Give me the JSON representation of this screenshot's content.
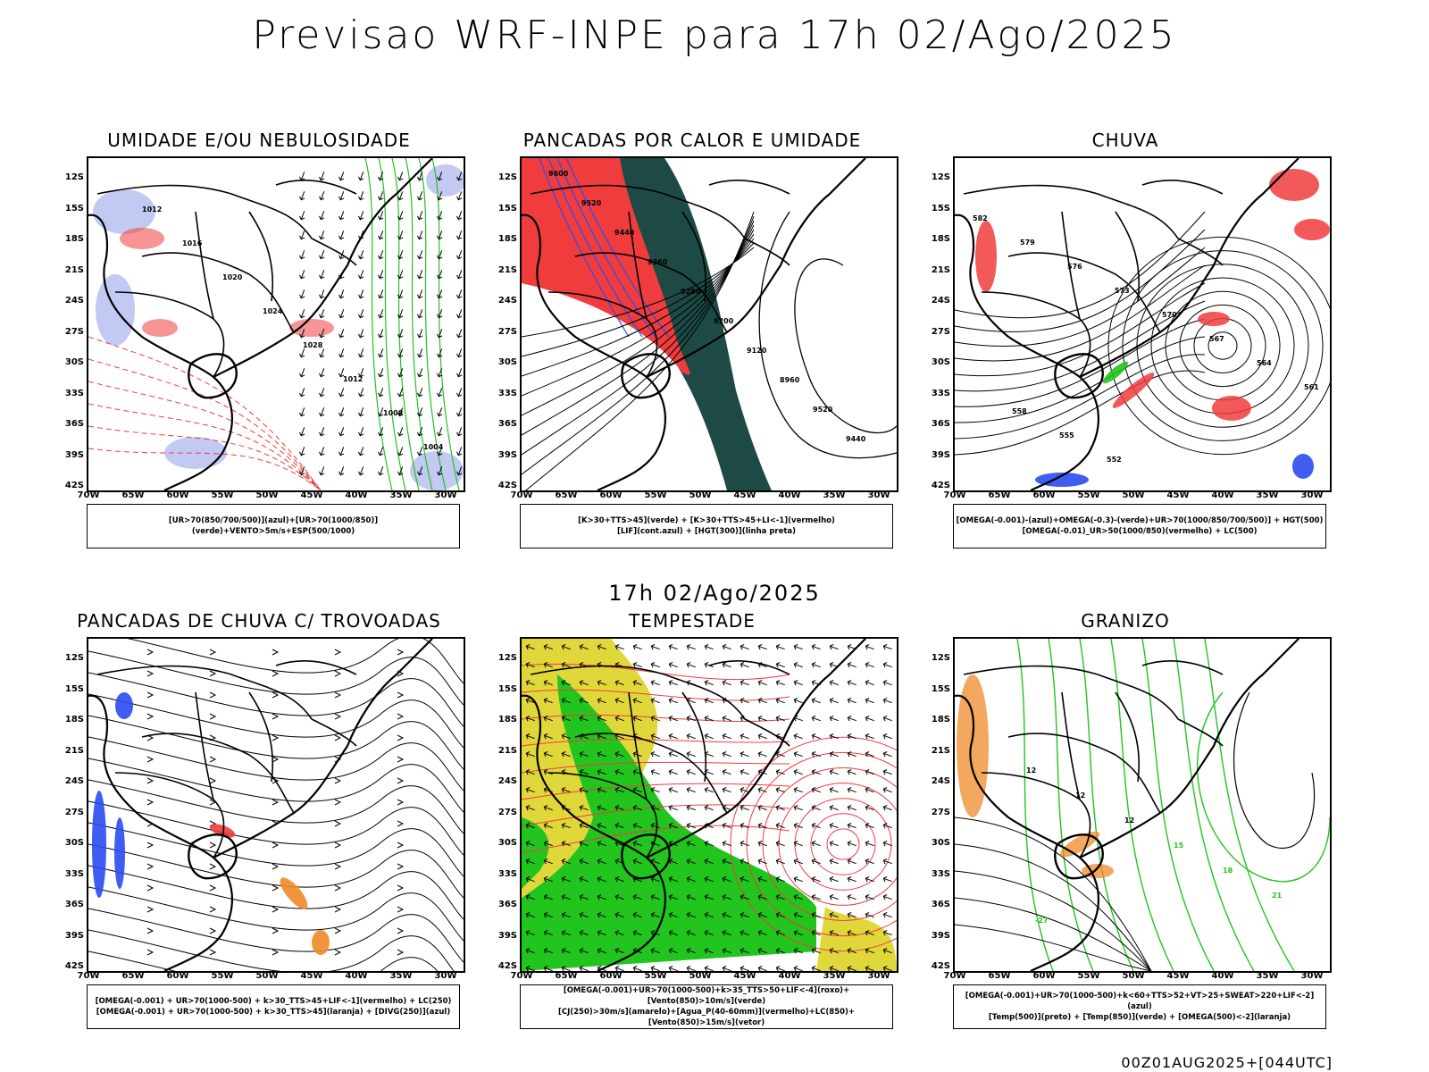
{
  "title": "Previsao WRF-INPE  para 17h 02/Ago/2025",
  "subtitle": "17h 02/Ago/2025",
  "footer": "00Z01AUG2025+[044UTC]",
  "lat_labels": [
    "12S",
    "15S",
    "18S",
    "21S",
    "24S",
    "27S",
    "30S",
    "33S",
    "36S",
    "39S",
    "42S"
  ],
  "lon_labels": [
    "70W",
    "65W",
    "60W",
    "55W",
    "50W",
    "45W",
    "40W",
    "35W",
    "30W"
  ],
  "panels": [
    {
      "title": "UMIDADE E/OU NEBULOSIDADE",
      "legend": [
        "[UR>70(850/700/500)](azul)+[UR>70(1000/850)](verde)+VENTO>5m/s+ESP(500/1000)"
      ],
      "labels": [
        "1012",
        "1016",
        "1020",
        "1024",
        "1028",
        "1012",
        "1008",
        "1004"
      ]
    },
    {
      "title": "PANCADAS POR CALOR E UMIDADE",
      "legend": [
        "[K>30+TTS>45](verde) + [K>30+TTS>45+LI<-1](vermelho)",
        "[LIF](cont.azul) + [HGT(300)](linha preta)"
      ],
      "labels": [
        "9600",
        "9520",
        "9440",
        "9360",
        "9280",
        "9200",
        "9120",
        "8960",
        "9520",
        "9440"
      ]
    },
    {
      "title": "CHUVA",
      "legend": [
        "[OMEGA(-0.001)-(azul)+OMEGA(-0.3)-(verde)+UR>70(1000/850/700/500)] + HGT(500)",
        "[OMEGA(-0.01)_UR>50(1000/850)(vermelho) + LC(500)"
      ],
      "labels": [
        "582",
        "579",
        "576",
        "573",
        "570",
        "567",
        "564",
        "561",
        "558",
        "555",
        "552"
      ]
    },
    {
      "title": "PANCADAS DE CHUVA C/ TROVOADAS",
      "legend": [
        "[OMEGA(-0.001) + UR>70(1000-500) + k>30_TTS>45+LIF<-1](vermelho) + LC(250)",
        "[OMEGA(-0.001) + UR>70(1000-500) + k>30_TTS>45](laranja) + [DIVG(250)](azul)"
      ],
      "labels": []
    },
    {
      "title": "TEMPESTADE",
      "legend": [
        "[OMEGA(-0.001)+UR>70(1000-500)+k>35_TTS>50+LIF<-4](roxo)+[Vento(850)>10m/s](verde)",
        "[CJ(250)>30m/s](amarelo)+[Agua_P(40-60mm)](vermelho)+LC(850)+[Vento(850)>15m/s](vetor)"
      ],
      "labels": []
    },
    {
      "title": "GRANIZO",
      "legend": [
        "[OMEGA(-0.001)+UR>70(1000-500)+k<60+TTS>52+VT>25+SWEAT>220+LIF<-2](azul)",
        "[Temp(500)](preto) + [Temp(850)](verde) + [OMEGA(500)<-2](laranja)"
      ],
      "labels": [
        "12",
        "12",
        "12",
        "15",
        "18",
        "21",
        "-27"
      ]
    }
  ],
  "colors": {
    "black": "#000000",
    "red": "#f03c3c",
    "green": "#22c41e",
    "blue": "#2a4cf0",
    "lightblue": "#a8b4f0",
    "darkteal": "#1d4a44",
    "yellow": "#e0d83a",
    "orange": "#f08a28",
    "purple": "#b040c0"
  }
}
